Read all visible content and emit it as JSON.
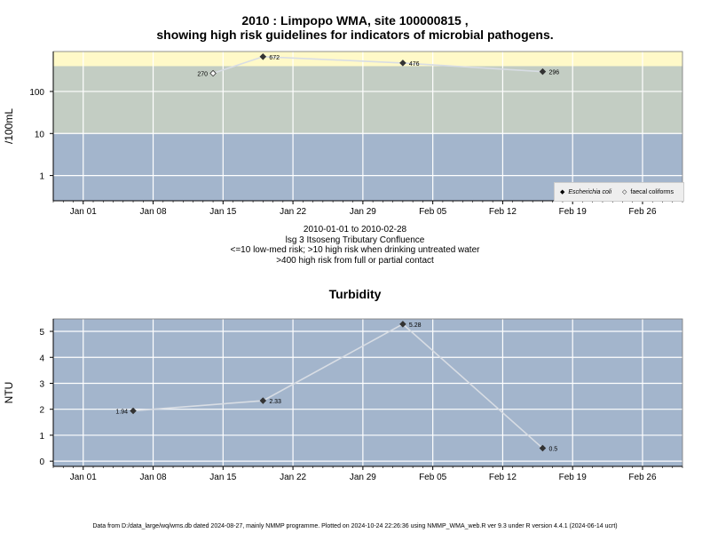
{
  "title": {
    "line1": "2010 : Limpopo WMA, site 100000815 ,",
    "line2": "showing high risk guidelines for indicators of microbial pathogens."
  },
  "caption": {
    "line1": "2010-01-01 to 2010-02-28",
    "line2": "lsg 3 Itsoseng Tributary Confluence",
    "line3": "<=10 low-med risk; >10 high risk when drinking untreated water",
    "line4": ">400 high risk from full or partial contact"
  },
  "footer": "Data from D:/data_large/wq/wms.db dated 2024-08-27, mainly NMMP programme. Plotted on 2024-10-24 22:26:36 using NMMP_WMA_web.R ver 9.3 under R version 4.4.1 (2024-06-14 ucrt)",
  "legend": {
    "ecoli_symbol": "◆",
    "ecoli_label": "Escherichia coli",
    "faecal_symbol": "◇",
    "faecal_label": "faecal coliforms"
  },
  "colors": {
    "band_low": "#a3b5cc",
    "band_mid": "#c3cdc3",
    "band_high": "#fff9c8",
    "line": "#d8dde4",
    "grid": "#ffffff",
    "point": "#333333"
  },
  "chart_data": [
    {
      "type": "scatter",
      "title": "",
      "ylabel": "/100mL",
      "yscale": "log",
      "x_type": "date",
      "xlim": [
        "2009-12-29",
        "2010-03-02"
      ],
      "ylim_log10": [
        -0.6,
        2.95
      ],
      "x_ticks": [
        "2010-01-01",
        "2010-01-08",
        "2010-01-15",
        "2010-01-22",
        "2010-01-29",
        "2010-02-05",
        "2010-02-12",
        "2010-02-19",
        "2010-02-26"
      ],
      "x_tick_labels": [
        "Jan 01",
        "Jan 08",
        "Jan 15",
        "Jan 22",
        "Jan 29",
        "Feb 05",
        "Feb 12",
        "Feb 19",
        "Feb 26"
      ],
      "y_ticks": [
        1,
        10,
        100
      ],
      "y_tick_labels": [
        "1",
        "10",
        "100"
      ],
      "bands": [
        {
          "from": 0,
          "to": 10,
          "color_key": "band_low"
        },
        {
          "from": 10,
          "to": 400,
          "color_key": "band_mid"
        },
        {
          "from": 400,
          "to": null,
          "color_key": "band_high"
        }
      ],
      "grid": true,
      "legend_position": "bottom-right",
      "series": [
        {
          "name": "Escherichia coli",
          "marker": "filled-diamond",
          "points": [
            {
              "x": "2010-01-19",
              "y": 672,
              "label": "672"
            },
            {
              "x": "2010-02-02",
              "y": 476,
              "label": "476"
            },
            {
              "x": "2010-02-16",
              "y": 296,
              "label": "296"
            }
          ]
        },
        {
          "name": "faecal coliforms",
          "marker": "open-diamond",
          "points": [
            {
              "x": "2010-01-14",
              "y": 270,
              "label": "270"
            }
          ]
        }
      ],
      "line_order": [
        "2010-01-14",
        "2010-01-19",
        "2010-02-02",
        "2010-02-16"
      ]
    },
    {
      "type": "line",
      "title": "Turbidity",
      "ylabel": "NTU",
      "x_type": "date",
      "xlim": [
        "2009-12-29",
        "2010-03-02"
      ],
      "ylim": [
        -0.2,
        5.48
      ],
      "x_ticks": [
        "2010-01-01",
        "2010-01-08",
        "2010-01-15",
        "2010-01-22",
        "2010-01-29",
        "2010-02-05",
        "2010-02-12",
        "2010-02-19",
        "2010-02-26"
      ],
      "x_tick_labels": [
        "Jan 01",
        "Jan 08",
        "Jan 15",
        "Jan 22",
        "Jan 29",
        "Feb 05",
        "Feb 12",
        "Feb 19",
        "Feb 26"
      ],
      "y_ticks": [
        0,
        1,
        2,
        3,
        4,
        5
      ],
      "y_tick_labels": [
        "0",
        "1",
        "2",
        "3",
        "4",
        "5"
      ],
      "grid": true,
      "series": [
        {
          "name": "",
          "marker": "filled-diamond",
          "points": [
            {
              "x": "2010-01-06",
              "y": 1.94,
              "label": "1.94"
            },
            {
              "x": "2010-01-19",
              "y": 2.33,
              "label": "2.33"
            },
            {
              "x": "2010-02-02",
              "y": 5.28,
              "label": "5.28"
            },
            {
              "x": "2010-02-16",
              "y": 0.5,
              "label": "0.5"
            }
          ]
        }
      ]
    }
  ]
}
